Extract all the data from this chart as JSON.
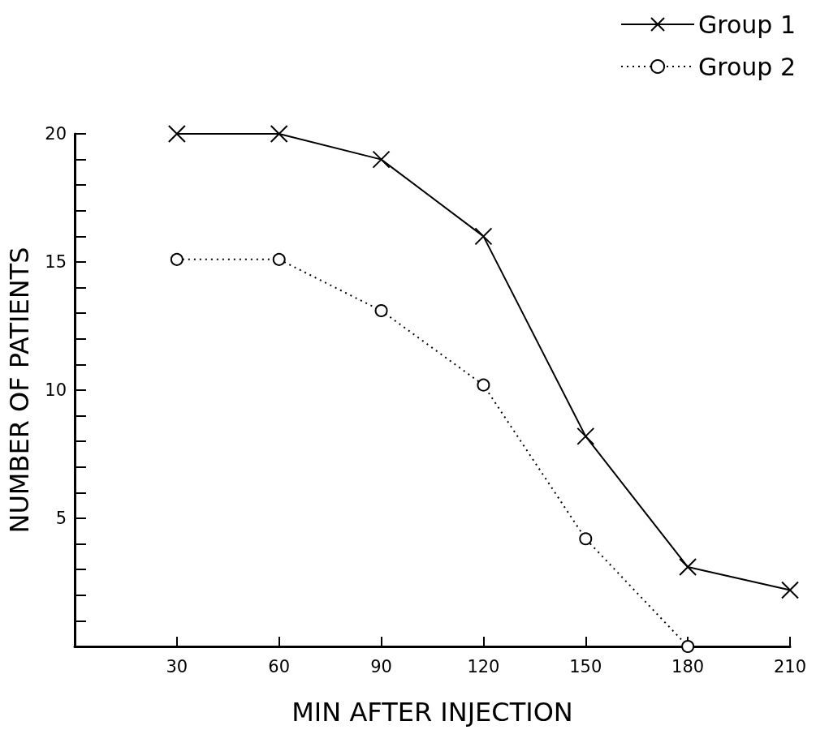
{
  "chart_data": {
    "type": "line",
    "xlabel": "MIN AFTER INJECTION",
    "ylabel": "NUMBER OF PATIENTS",
    "x": [
      30,
      60,
      90,
      120,
      150,
      180,
      210
    ],
    "series": [
      {
        "name": "Group 1",
        "color": "#000000",
        "marker": "cross",
        "line_style": "solid",
        "values": [
          20,
          20,
          19,
          16,
          8.2,
          3.1,
          2.2
        ]
      },
      {
        "name": "Group 2",
        "color": "#000000",
        "marker": "circle",
        "line_style": "dotted",
        "values": [
          15.1,
          15.1,
          13.1,
          10.2,
          4.2,
          0,
          null
        ]
      }
    ],
    "xlim": [
      0,
      210
    ],
    "xticks": [
      30,
      60,
      90,
      120,
      150,
      180,
      210
    ],
    "ylim": [
      0,
      20
    ],
    "yticks": [
      {
        "value": 1,
        "label": null
      },
      {
        "value": 2,
        "label": null
      },
      {
        "value": 3,
        "label": null
      },
      {
        "value": 4,
        "label": null
      },
      5,
      {
        "value": 6,
        "label": null
      },
      {
        "value": 7,
        "label": null
      },
      {
        "value": 8,
        "label": null
      },
      {
        "value": 9,
        "label": null
      },
      10,
      {
        "value": 11,
        "label": null
      },
      {
        "value": 12,
        "label": null
      },
      {
        "value": 13,
        "label": null
      },
      {
        "value": 14,
        "label": null
      },
      15,
      {
        "value": 16,
        "label": null
      },
      {
        "value": 17,
        "label": null
      },
      {
        "value": 18,
        "label": null
      },
      {
        "value": 19,
        "label": null
      },
      20
    ],
    "grid": false,
    "legend": "top right"
  }
}
